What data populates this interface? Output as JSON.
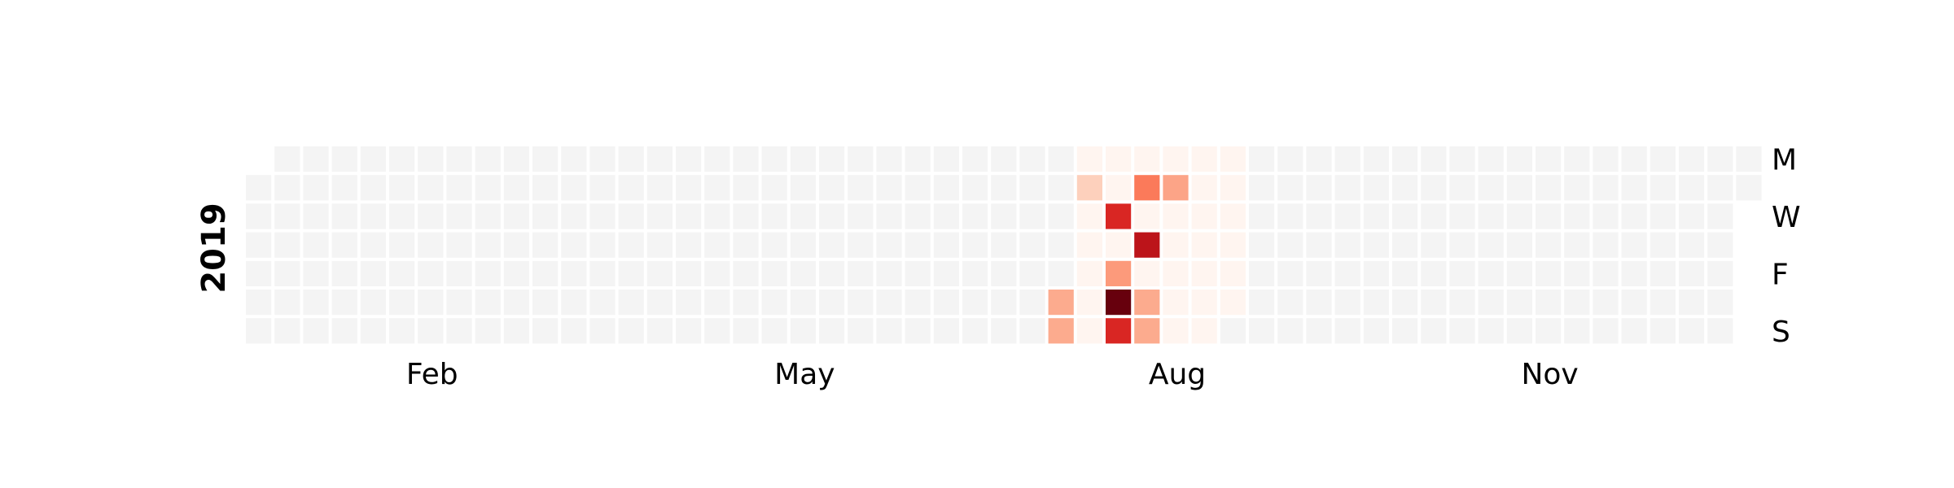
{
  "chart_data": {
    "type": "heatmap",
    "year": "2019",
    "week_start": "Monday",
    "colormap": "Reds",
    "empty_color": "#f4f4f4",
    "x_tick_labels": [
      {
        "label": "Feb",
        "week": 6.5
      },
      {
        "label": "May",
        "week": 19.5
      },
      {
        "label": "Aug",
        "week": 32.5
      },
      {
        "label": "Nov",
        "week": 45.5
      }
    ],
    "y_tick_labels": [
      {
        "label": "M",
        "day": 0
      },
      {
        "label": "W",
        "day": 2
      },
      {
        "label": "F",
        "day": 4
      },
      {
        "label": "S",
        "day": 6
      }
    ],
    "value_range": [
      0,
      10
    ],
    "data_range": {
      "start": "2019-07-20",
      "end": "2019-08-31"
    },
    "nonzero": [
      {
        "date": "2019-07-20",
        "value": 3
      },
      {
        "date": "2019-07-21",
        "value": 3
      },
      {
        "date": "2019-07-23",
        "value": 1.8
      },
      {
        "date": "2019-07-31",
        "value": 7
      },
      {
        "date": "2019-08-02",
        "value": 3.5
      },
      {
        "date": "2019-08-03",
        "value": 10
      },
      {
        "date": "2019-08-04",
        "value": 7
      },
      {
        "date": "2019-08-06",
        "value": 4.5
      },
      {
        "date": "2019-08-08",
        "value": 8
      },
      {
        "date": "2019-08-10",
        "value": 3
      },
      {
        "date": "2019-08-11",
        "value": 3
      },
      {
        "date": "2019-08-13",
        "value": 3.2
      }
    ]
  }
}
